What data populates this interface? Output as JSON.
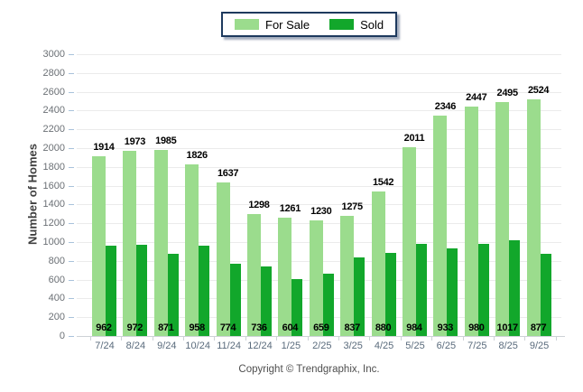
{
  "legend": {
    "items": [
      {
        "label": "For Sale",
        "color": "#9BDC8D"
      },
      {
        "label": "Sold",
        "color": "#12A72B"
      }
    ]
  },
  "y_axis_title": "Number of Homes",
  "footer_text": "Copyright © Trendgraphix, Inc.",
  "colors": {
    "legend_border": "#1E3A5E",
    "grid": "#EBEBEB",
    "axis": "#CDD2D6",
    "y_tick_mark": "#A9C2DB",
    "y_label": "#6B7075",
    "x_label": "#5A6B7C",
    "value_label": "#000000",
    "y_title": "#3F3F3F",
    "footer": "#4F4F4F"
  },
  "chart_data": {
    "type": "bar",
    "title": "",
    "xlabel": "",
    "ylabel": "Number of Homes",
    "ylim": [
      0,
      3000
    ],
    "ytick_step": 200,
    "grid": true,
    "legend_position": "top-center",
    "bar_value_labels": true,
    "categories": [
      "7/24",
      "8/24",
      "9/24",
      "10/24",
      "11/24",
      "12/24",
      "1/25",
      "2/25",
      "3/25",
      "4/25",
      "5/25",
      "6/25",
      "7/25",
      "8/25",
      "9/25"
    ],
    "series": [
      {
        "name": "For Sale",
        "color": "#9BDC8D",
        "values": [
          1914,
          1973,
          1985,
          1826,
          1637,
          1298,
          1261,
          1230,
          1275,
          1542,
          2011,
          2346,
          2447,
          2495,
          2524
        ]
      },
      {
        "name": "Sold",
        "color": "#12A72B",
        "values": [
          962,
          972,
          871,
          958,
          774,
          736,
          604,
          659,
          837,
          880,
          984,
          933,
          980,
          1017,
          877
        ]
      }
    ]
  }
}
